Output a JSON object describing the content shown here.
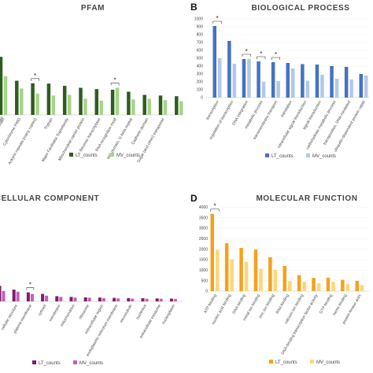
{
  "chart_data": [
    {
      "type": "bar",
      "panel": "",
      "title": "PFAM",
      "ylim": null,
      "series": [
        {
          "name": "LT_counts",
          "color": "#2e5e1e",
          "values": [
            900,
            530,
            490,
            485,
            450,
            420,
            400,
            390,
            360,
            310,
            300,
            290
          ]
        },
        {
          "name": "MV_counts",
          "color": "#a6d389",
          "values": [
            600,
            410,
            330,
            300,
            310,
            250,
            220,
            420,
            240,
            250,
            230,
            210
          ]
        }
      ],
      "categories": [
        "domain",
        "Cytochrome P450",
        "Ankyrin repeats (many copies)",
        "Trypsin",
        "Major Facilitator Superfamily",
        "Mitochondrial carrier protein",
        "Reverse transcriptase",
        "RNA recognition motif",
        "WD domain, G-beta repeat",
        "Cadherin domain",
        "Sugar (and other) transporter",
        ""
      ],
      "categories_display": [
        "domain",
        "Cytochrome P450",
        "Ankyrin repeats (many copies)",
        "Trypsin",
        "Major Facilitator Superfamily",
        "Mitochondrial carrier protein",
        "Reverse transcriptase",
        "RNA recognition motif",
        "WD domain, G-beta repeat",
        "Cadherin domain",
        "Sugar (and other) transporter"
      ],
      "extra_top_label": "C-terminal domain",
      "significance": [
        2,
        7
      ],
      "legend": "bottom"
    },
    {
      "type": "bar",
      "panel": "B",
      "title": "BIOLOGICAL PROCESS",
      "ylim": [
        0,
        1000
      ],
      "yticks": [
        0,
        100,
        200,
        300,
        400,
        500,
        600,
        700,
        800,
        900,
        1000
      ],
      "categories": [
        "transcription",
        "regulation of transcription",
        "DNA integration",
        "metabolic process",
        "transmembrane transport",
        "translation",
        "intracellular signal transduction",
        "signal transduction",
        "carbohydrate metabolic process",
        "transposition, DNA-mediated",
        "ubiquitin-dependent protein catab"
      ],
      "series": [
        {
          "name": "LT_counts",
          "color": "#4472c4",
          "values": [
            910,
            720,
            490,
            460,
            450,
            440,
            425,
            420,
            400,
            390,
            300
          ]
        },
        {
          "name": "MV_counts",
          "color": "#b4c7e7",
          "values": [
            500,
            430,
            490,
            200,
            210,
            370,
            215,
            290,
            240,
            230,
            280
          ]
        }
      ],
      "significance": [
        0,
        2,
        3,
        4
      ],
      "legend": "bottom"
    },
    {
      "type": "bar",
      "panel": "",
      "title": "CELLULAR COMPONENT",
      "ylim": null,
      "categories": [
        "",
        "cellular structure",
        "plasma membrane",
        "cytosol",
        "membrane",
        "mitochondrion",
        "ribosome",
        "extracellular region",
        "endoplasmic reticulum membrane",
        "microtubule",
        "nucleolus",
        "extracellular exosome",
        "nucleoplasm"
      ],
      "series": [
        {
          "name": "LT_counts",
          "color": "#7b1f6a",
          "values": [
            900,
            680,
            520,
            430,
            300,
            260,
            230,
            220,
            200,
            190,
            180,
            170,
            160
          ]
        },
        {
          "name": "MV_counts",
          "color": "#c060b8",
          "values": [
            600,
            560,
            430,
            330,
            260,
            220,
            210,
            190,
            170,
            160,
            150,
            150,
            140
          ]
        }
      ],
      "significance": [
        2
      ],
      "legend": "bottom"
    },
    {
      "type": "bar",
      "panel": "D",
      "title": "MOLECULAR FUNCTION",
      "ylim": [
        0,
        4000
      ],
      "yticks": [
        0,
        500,
        1000,
        1500,
        2000,
        2500,
        3000,
        3500,
        4000
      ],
      "categories": [
        "ATP binding",
        "nucleic acid binding",
        "DNA binding",
        "metal ion binding",
        "zinc ion binding",
        "RNA binding",
        "calcium ion binding",
        "DNA-binding transcription factor activity",
        "GTP binding",
        "heme binding",
        "protein kinase activ"
      ],
      "series": [
        {
          "name": "LT_counts",
          "color": "#f5a11c",
          "values": [
            3680,
            2280,
            2060,
            1980,
            1620,
            1200,
            760,
            630,
            640,
            540,
            490
          ]
        },
        {
          "name": "MV_counts",
          "color": "#ffd678",
          "values": [
            1970,
            1520,
            1400,
            1060,
            1010,
            480,
            450,
            380,
            440,
            340,
            290
          ]
        }
      ],
      "significance": [
        0
      ],
      "legend": "bottom"
    }
  ]
}
